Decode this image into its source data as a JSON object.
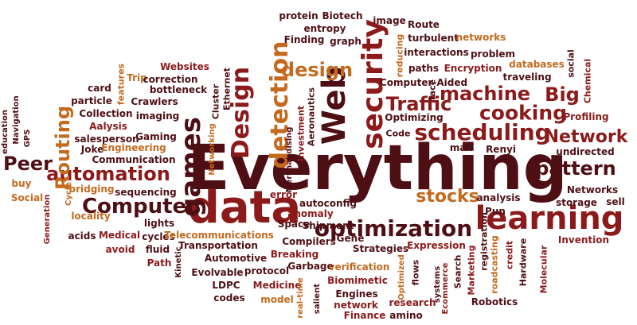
{
  "palette": {
    "dark": "#4e0f14",
    "red": "#8c1a1a",
    "brick": "#a63d1f",
    "orange": "#c46a1e",
    "gold": "#c99227",
    "maroon": "#6b1616"
  },
  "words": {
    "everything": "Everything",
    "data": "data",
    "learning": "learning",
    "optimization": "optimization",
    "games": "games",
    "detection": "detection",
    "security": "security",
    "web": "Web",
    "design_v": "Design",
    "design_h": "design",
    "scheduling": "scheduling",
    "machine": "machine",
    "big": "Big",
    "cooking": "cooking",
    "traffic": "Traffic",
    "computer": "Computer",
    "automation": "automation",
    "routing": "Routing",
    "peer": "Peer",
    "network": "Network",
    "pattern": "pattern",
    "stocks": "stocks",
    "protein": "protein",
    "biotech": "Biotech",
    "entropy": "entropy",
    "image": "image",
    "route": "Route",
    "finding": "Finding",
    "graph": "graph",
    "turbulent": "turbulent",
    "networks_top": "networks",
    "reducing": "reducing",
    "interactions": "interactions",
    "problem": "problem",
    "paths": "paths",
    "encryption": "Encryption",
    "databases": "databases",
    "social_top": "social",
    "traveling": "traveling",
    "computer_aided": "Computer-Aided",
    "chemical": "Chemical",
    "websites": "Websites",
    "trip": "Trip",
    "correction": "correction",
    "bottleneck": "bottleneck",
    "card": "card",
    "particle": "particle",
    "features": "features",
    "crawlers": "Crawlers",
    "cluster": "Cluster",
    "ethernet": "Ethernet",
    "aeronautics": "Aeronautics",
    "investment": "Investment",
    "optimizing": "Optimizing",
    "code": "Code",
    "face": "face",
    "profiling": "Profiling",
    "education": "education",
    "navigation": "Navigation",
    "collection": "Collection",
    "imaging": "imaging",
    "aalysis": "Aalysis",
    "gaming": "Gaming",
    "salesperson": "salesperson",
    "gps": "GPS",
    "joke": "Joke",
    "engineering": "Engineering",
    "networking": "Networking",
    "merchandising": "Merchandising",
    "max": "max",
    "renyi": "Renyi",
    "undirected": "undirected",
    "communication": "Communication",
    "buy": "buy",
    "social_left": "Social",
    "cycle": "Cycle",
    "bridging": "bridging",
    "sequencing": "sequencing",
    "generation": "Generation",
    "error": "error",
    "autoconfig": "autoconfig",
    "anomaly": "anomaly",
    "space": "Space",
    "shipment": "Shipment",
    "analysis": "analysis",
    "pun": "Pun",
    "networks_right": "Networks",
    "storage": "storage",
    "sell": "sell",
    "locality": "locality",
    "lights": "lights",
    "acids": "acids",
    "medical": "Medical",
    "cycles": "cycles",
    "telecommunications": "Telecommunications",
    "transportation": "Transportation",
    "avoid": "avoid",
    "fluid": "fluid",
    "path": "Path",
    "automotive": "Automotive",
    "breaking": "Breaking",
    "compilers": "Compilers",
    "gene": "Gene",
    "strategies": "Strategies",
    "expression": "Expression",
    "registration": "registration",
    "invention": "Invention",
    "kinetic": "Kinetic",
    "evolvable": "Evolvable",
    "protocol": "protocol",
    "garbage": "Garbage",
    "verification": "verification",
    "flows": "flows",
    "search": "Search",
    "marketing": "Marketing",
    "roadcasting": "roadcasting",
    "credit": "credit",
    "hardware": "Hardware",
    "molecular": "Molecular",
    "ldpc": "LDPC",
    "medicine": "Medicine",
    "codes": "codes",
    "model": "model",
    "real_time": "real-time",
    "salient": "salient",
    "biomimetic": "Biomimetic",
    "optimized": "Optimized",
    "systems": "systems",
    "ecommerce": "Ecommerce",
    "engines": "Engines",
    "network_small": "network",
    "finance": "Finance",
    "amino": "amino",
    "research": "research",
    "robotics": "Robotics"
  }
}
